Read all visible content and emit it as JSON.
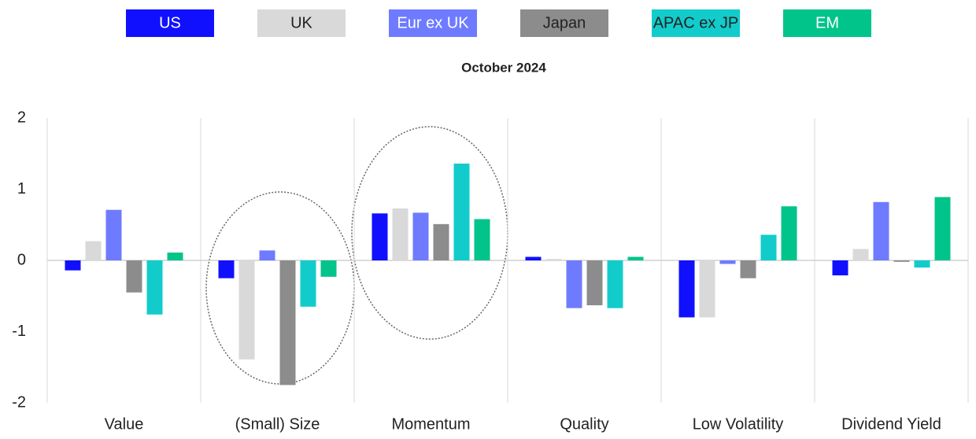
{
  "chart_data": {
    "type": "bar",
    "title": "October 2024",
    "categories": [
      "Value",
      "(Small) Size",
      "Momentum",
      "Quality",
      "Low Volatility",
      "Dividend Yield"
    ],
    "series": [
      {
        "name": "US",
        "color": "#1010ff",
        "values": [
          -0.14,
          -0.25,
          0.66,
          0.05,
          -0.8,
          -0.21
        ]
      },
      {
        "name": "UK",
        "color": "#d9d9d9",
        "values": [
          0.27,
          -1.39,
          0.73,
          0.02,
          -0.8,
          0.16
        ]
      },
      {
        "name": "Eur ex UK",
        "color": "#6e7bff",
        "values": [
          0.71,
          0.14,
          0.67,
          -0.67,
          -0.05,
          0.82
        ]
      },
      {
        "name": "Japan",
        "color": "#8c8c8c",
        "values": [
          -0.45,
          -1.75,
          0.51,
          -0.63,
          -0.25,
          -0.02
        ]
      },
      {
        "name": "APAC ex JP",
        "color": "#12cccc",
        "values": [
          -0.76,
          -0.65,
          1.36,
          -0.67,
          0.36,
          -0.1
        ]
      },
      {
        "name": "EM",
        "color": "#00c48a",
        "values": [
          0.11,
          -0.23,
          0.58,
          0.05,
          0.76,
          0.89
        ]
      }
    ],
    "ylim": [
      -2,
      2
    ],
    "yticks": [
      -2,
      -1,
      0,
      1,
      2
    ],
    "grid": false
  }
}
